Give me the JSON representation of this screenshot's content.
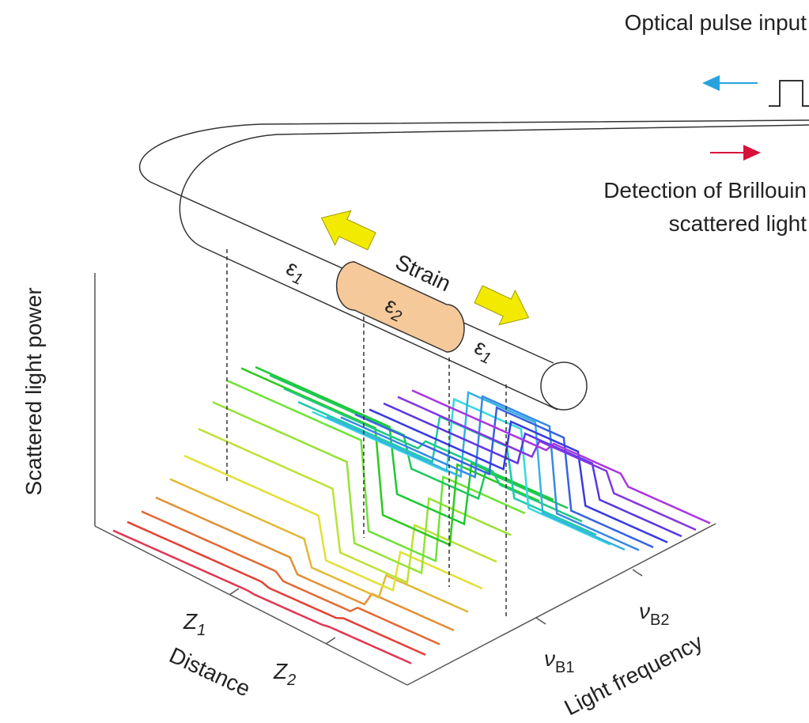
{
  "header": {
    "pulse_input": "Optical pulse input",
    "detection": [
      "Detection of Brillouin",
      "scattered light"
    ]
  },
  "fiber": {
    "strain": "Strain",
    "segments": [
      {
        "symbol": "ε",
        "subscript": "1"
      },
      {
        "symbol": "ε",
        "subscript": "2"
      },
      {
        "symbol": "ε",
        "subscript": "1"
      }
    ]
  },
  "plot": {
    "y_axis": "Scattered light power",
    "x_axis": "Distance",
    "z_axis": "Light frequency",
    "distance_marks": [
      {
        "symbol": "Z",
        "subscript": "1"
      },
      {
        "symbol": "Z",
        "subscript": "2"
      }
    ],
    "frequency_marks": [
      {
        "symbol": "ν",
        "subscript": "B1"
      },
      {
        "symbol": "ν",
        "subscript": "B2"
      }
    ]
  }
}
